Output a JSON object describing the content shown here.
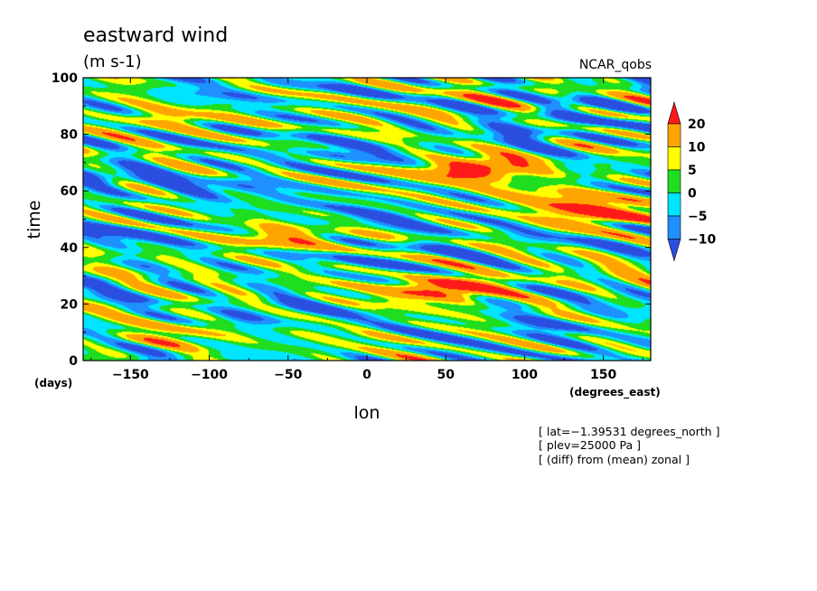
{
  "chart_data": {
    "type": "heatmap",
    "title": "eastward wind",
    "units": "(m s-1)",
    "source_label": "NCAR_qobs",
    "xlabel": "lon",
    "ylabel": "time",
    "x_units_label": "(degrees_east)",
    "y_units_label": "(days)",
    "xlim": [
      -180,
      180
    ],
    "ylim": [
      0,
      100
    ],
    "x_ticks": [
      -150,
      -100,
      -50,
      0,
      50,
      100,
      150
    ],
    "y_ticks": [
      0,
      20,
      40,
      60,
      80,
      100
    ],
    "x_tick_labels": [
      "−150",
      "−100",
      "−50",
      "0",
      "50",
      "100",
      "150"
    ],
    "y_tick_labels": [
      "0",
      "20",
      "40",
      "60",
      "80",
      "100"
    ],
    "colorbar": {
      "levels": [
        -10,
        -5,
        0,
        5,
        10,
        20
      ],
      "level_labels": [
        "−10",
        "−5",
        "0",
        "5",
        "10",
        "20"
      ],
      "colors": [
        "#2a4fe0",
        "#1e90ff",
        "#00e5ff",
        "#1fdd1f",
        "#ffff00",
        "#ffa500",
        "#ff1a1a"
      ],
      "extends": "both"
    },
    "annotations": [
      "[ lat=−1.39531 degrees_north ]",
      "[ plev=25000 Pa ]",
      "[ (diff) from (mean) zonal ]"
    ],
    "field_description": "Zonal-mean-removed eastward wind anomaly vs longitude and time; dominated by -5..5 m/s values with eastward-propagating positive (10-20 m/s) episodes near day 25, 45, 65 and negative streaks across the domain.",
    "features": [
      {
        "lon": 40,
        "time": 25,
        "value": 15
      },
      {
        "lon": 60,
        "time": 26,
        "value": 20
      },
      {
        "lon": -50,
        "time": 44,
        "value": 11
      },
      {
        "lon": -60,
        "time": 42,
        "value": 8
      },
      {
        "lon": 140,
        "time": 55,
        "value": 15
      },
      {
        "lon": 150,
        "time": 51,
        "value": 20
      },
      {
        "lon": 65,
        "time": 67,
        "value": 16
      },
      {
        "lon": 72,
        "time": 68,
        "value": 20
      },
      {
        "lon": -120,
        "time": 85,
        "value": 10
      },
      {
        "lon": -140,
        "time": 86,
        "value": 7
      },
      {
        "lon": 115,
        "time": 59,
        "value": 9
      },
      {
        "lon": -130,
        "time": 8,
        "value": 11
      },
      {
        "lon": -100,
        "time": 20,
        "value": 5
      },
      {
        "lon": 20,
        "time": 90,
        "value": 6
      },
      {
        "lon": 90,
        "time": 91,
        "value": 5
      },
      {
        "lon": 160,
        "time": 30,
        "value": 6
      },
      {
        "lon": 0,
        "time": 8,
        "value": 4
      },
      {
        "lon": -170,
        "time": 65,
        "value": -10
      },
      {
        "lon": -150,
        "time": 46,
        "value": -9
      },
      {
        "lon": -90,
        "time": 62,
        "value": -9
      },
      {
        "lon": -20,
        "time": 73,
        "value": -8
      },
      {
        "lon": 140,
        "time": 90,
        "value": -10
      },
      {
        "lon": 100,
        "time": 80,
        "value": -9
      },
      {
        "lon": 120,
        "time": 12,
        "value": -8
      },
      {
        "lon": 0,
        "time": 50,
        "value": -7
      },
      {
        "lon": -60,
        "time": 18,
        "value": -8
      },
      {
        "lon": 30,
        "time": 38,
        "value": -7
      },
      {
        "lon": -110,
        "time": 92,
        "value": -6
      }
    ]
  }
}
